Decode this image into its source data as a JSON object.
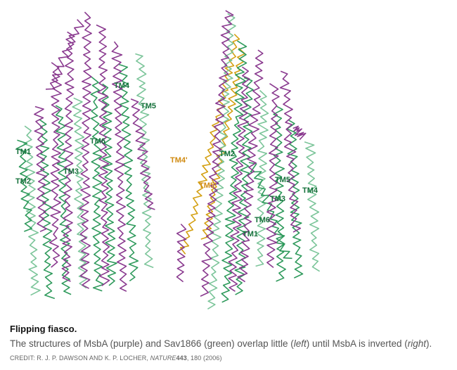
{
  "colors": {
    "msba": "#8a3a8f",
    "sav": "#2f9a5c",
    "sav_light": "#7cc59a",
    "highlight": "#d4a012",
    "label_green": "#14703a",
    "label_orange": "#d08a10"
  },
  "left_labels": {
    "tm1": "TM1",
    "tm2": "TM2",
    "tm3": "TM3",
    "tm4": "TM4",
    "tm5": "TM5",
    "tm6": "TM6"
  },
  "right_labels": {
    "tm1": "TM1",
    "tm2": "TM2",
    "tm3": "TM3",
    "tm4": "TM4",
    "tm5": "TM5",
    "tm6": "TM6",
    "tm4_prime": "TM4'",
    "tm5_prime": "TM5'"
  },
  "caption": {
    "title": "Flipping fiasco.",
    "text_1": "The structures of MsbA (purple) and Sav1866 (green) overlap little (",
    "left_word": "left",
    "text_2": ") until MsbA is inverted (",
    "right_word": "right",
    "text_3": ").",
    "credit_1": "CREDIT: R. J. P. DAWSON AND K. P. LOCHER,",
    "credit_journal": "NATURE",
    "credit_volume": "443",
    "credit_2": ", 180 (2006)"
  }
}
